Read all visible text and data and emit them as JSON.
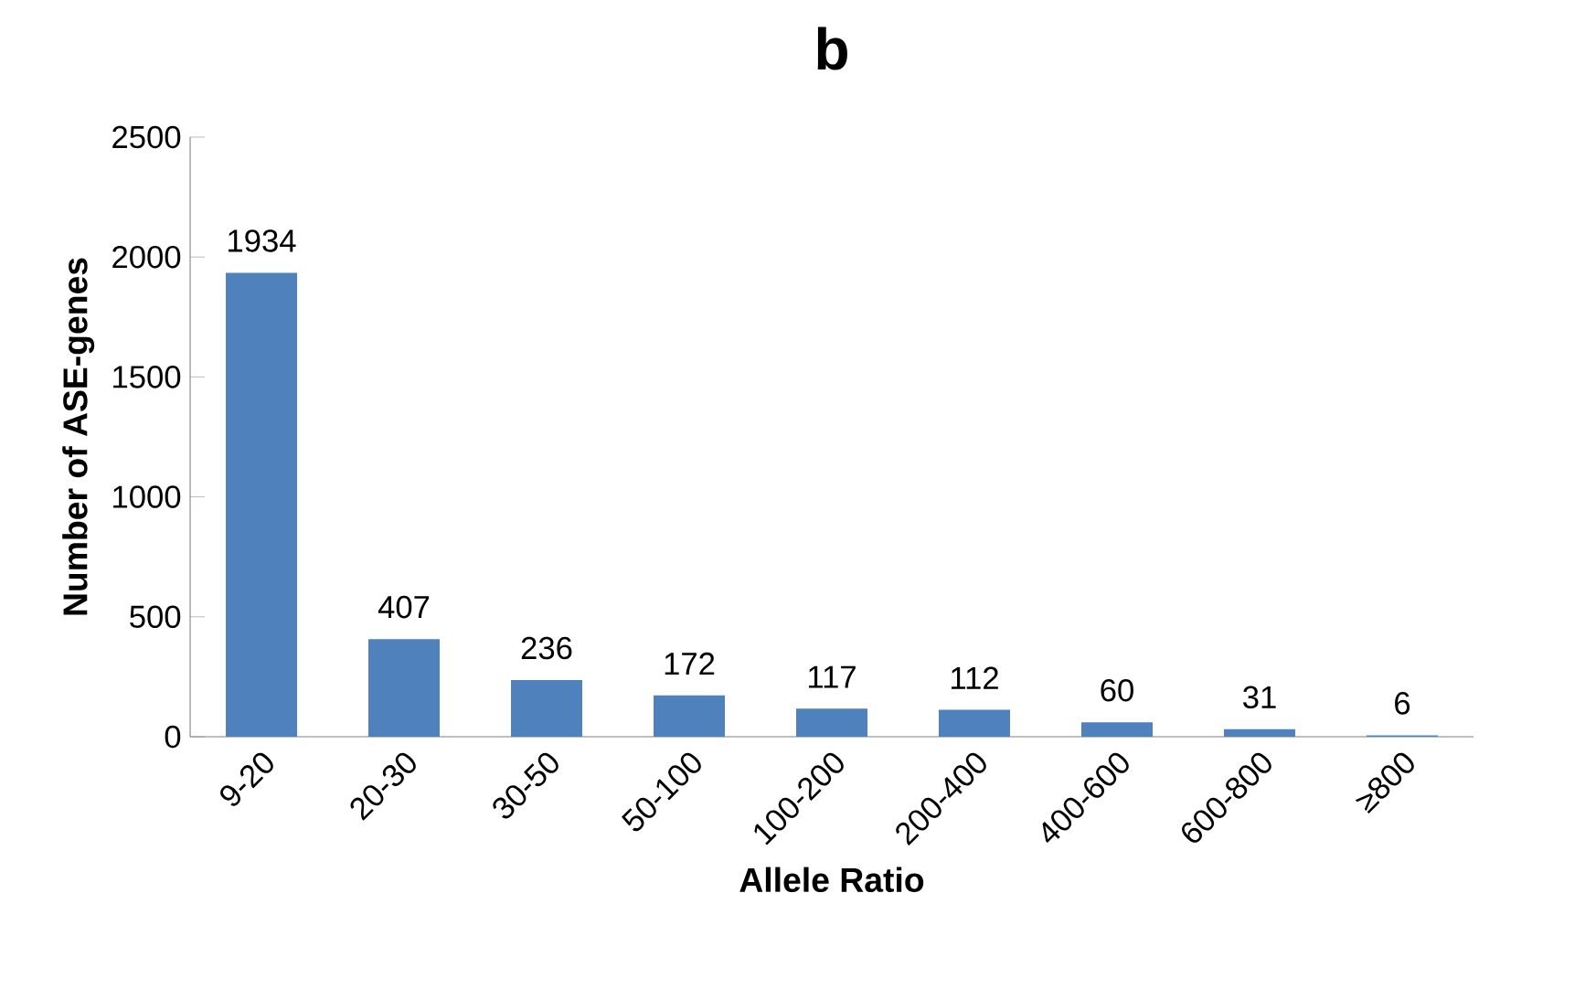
{
  "chart_data": {
    "type": "bar",
    "title": "b",
    "xlabel": "Allele Ratio",
    "ylabel": "Number of ASE-genes",
    "categories": [
      "9-20",
      "20-30",
      "30-50",
      "50-100",
      "100-200",
      "200-400",
      "400-600",
      "600-800",
      "≥800"
    ],
    "values": [
      1934,
      407,
      236,
      172,
      117,
      112,
      60,
      31,
      6
    ],
    "color": "#4f81bd",
    "ylim": [
      0,
      2500
    ],
    "yticks": [
      0,
      500,
      1000,
      1500,
      2000,
      2500
    ],
    "data_labels": true
  }
}
